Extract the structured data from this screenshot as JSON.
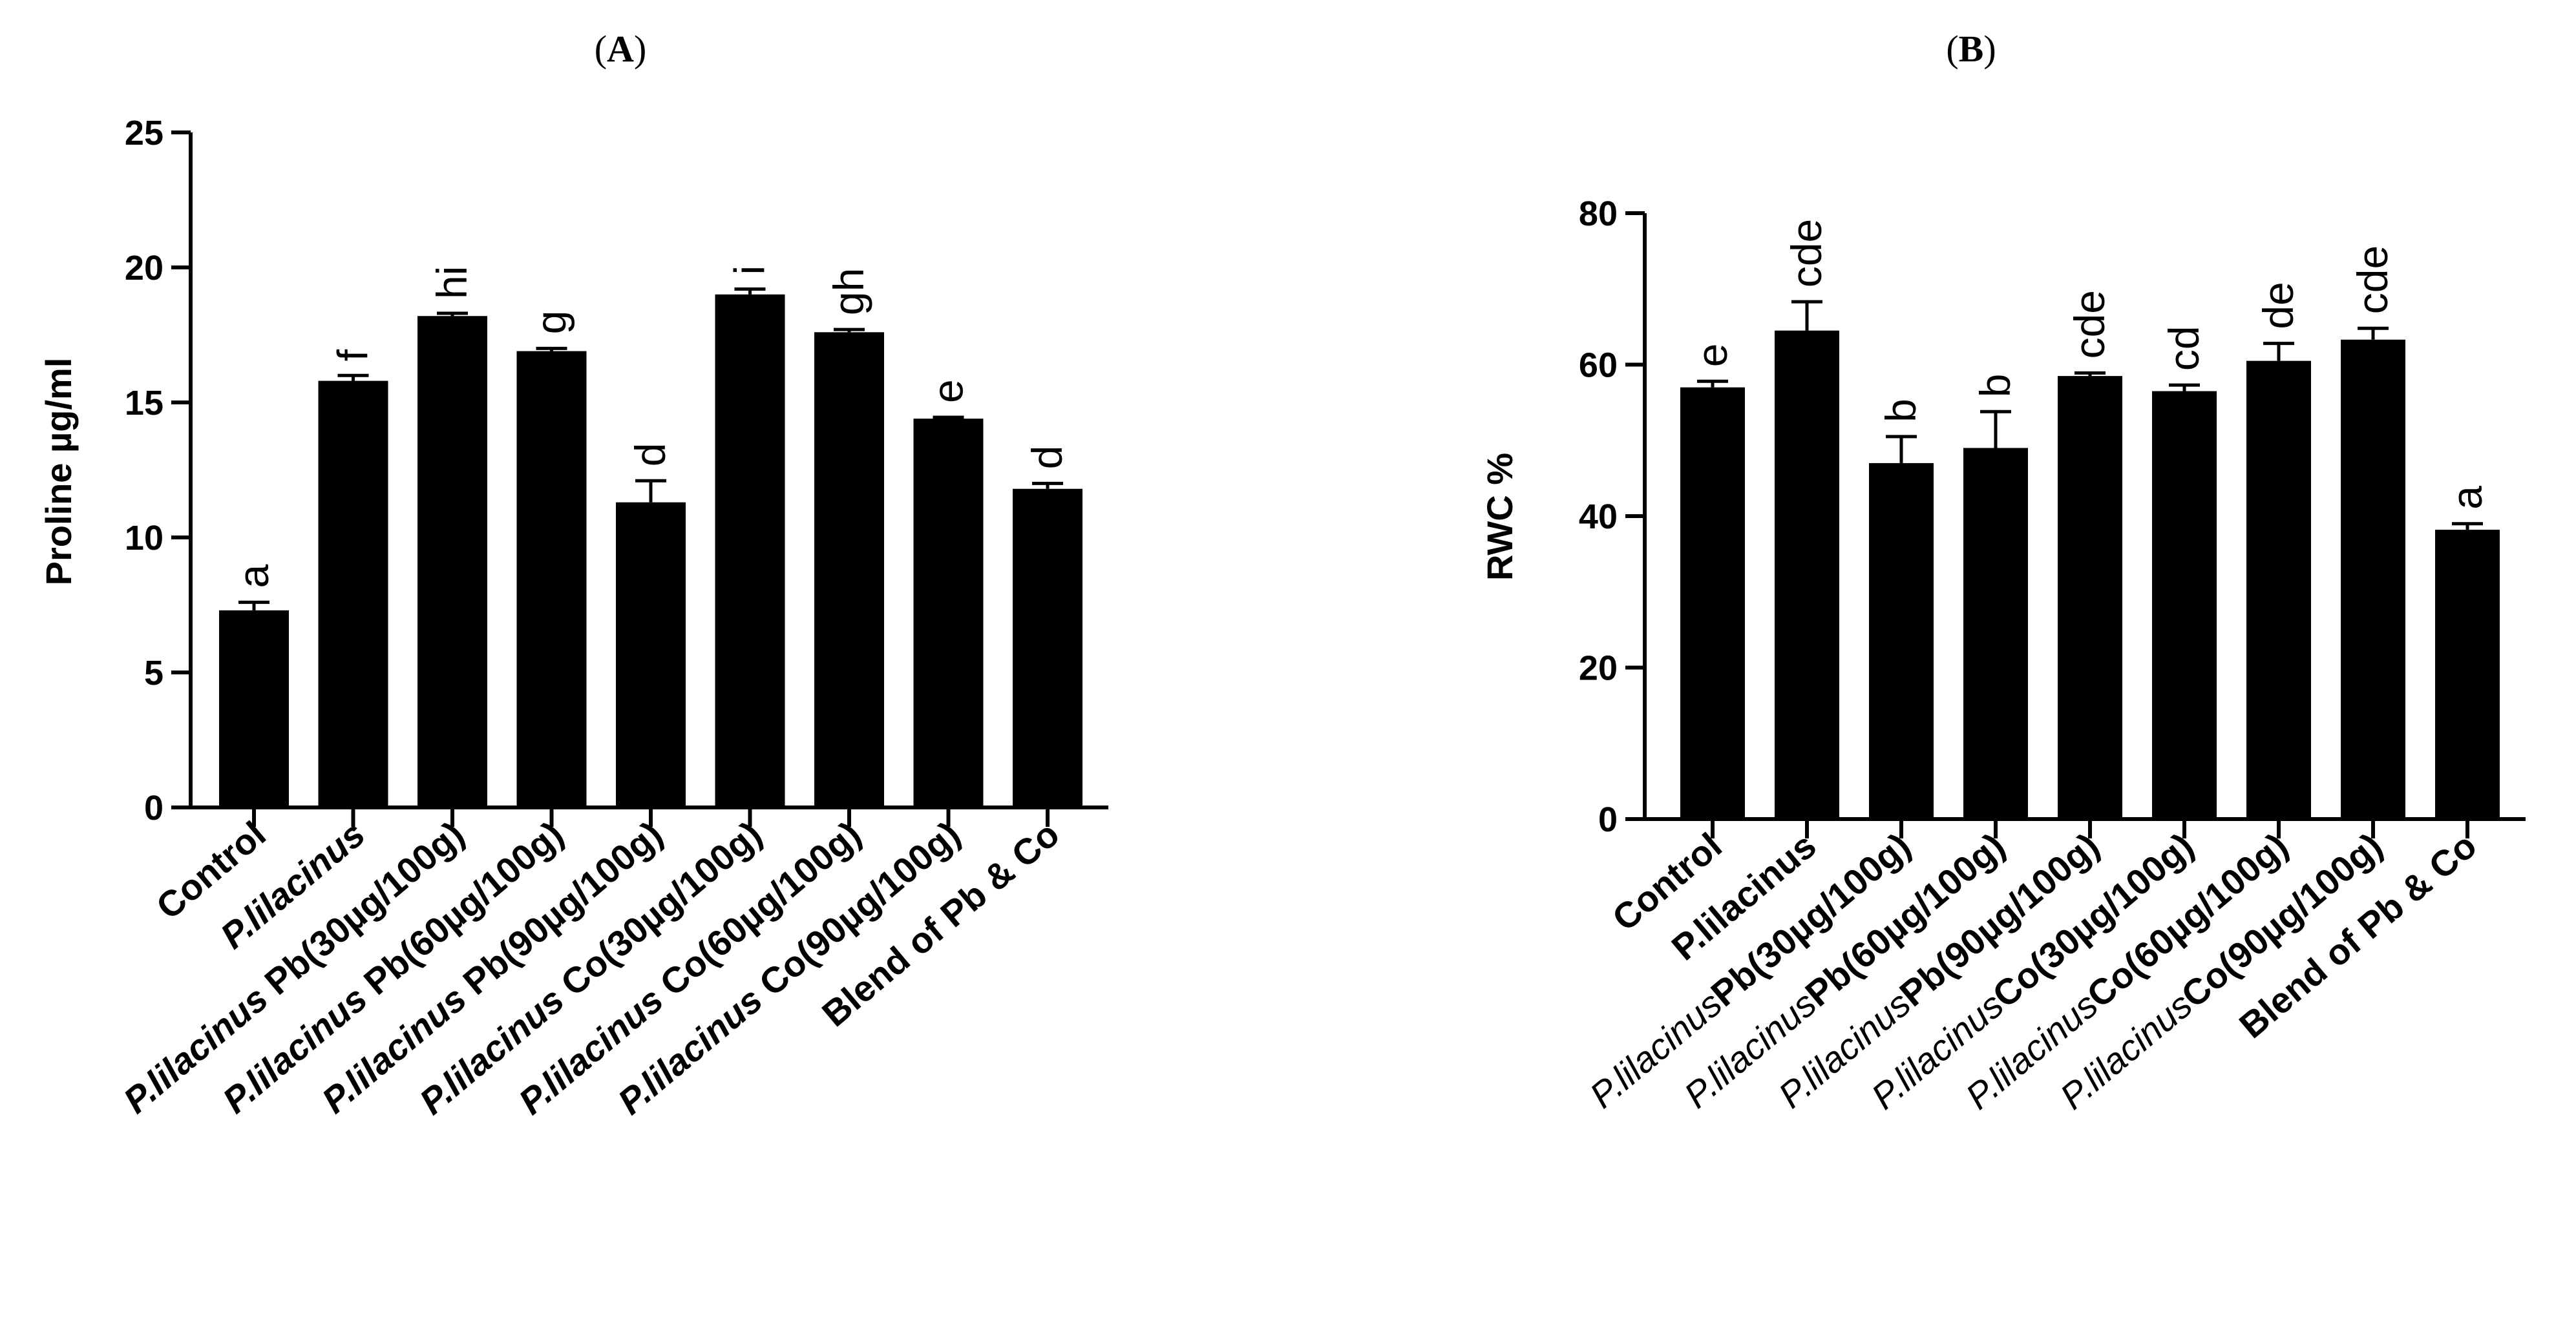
{
  "chart_data": [
    {
      "type": "bar",
      "panel_label": "A",
      "title": "",
      "xlabel": "",
      "ylabel": "Proline µg/ml",
      "ylim": [
        0,
        25
      ],
      "yticks": [
        0,
        5,
        10,
        15,
        20,
        25
      ],
      "categories": [
        {
          "prefix": "",
          "main": "Control",
          "prefix_italic": false,
          "main_italic": false
        },
        {
          "prefix": "",
          "main": "P.lilacinus",
          "prefix_italic": false,
          "main_italic": true
        },
        {
          "prefix": "P.lilacinus",
          "main": " Pb(30µg/100g)",
          "prefix_italic": true,
          "main_italic": false
        },
        {
          "prefix": "P.lilacinus",
          "main": " Pb(60µg/100g)",
          "prefix_italic": true,
          "main_italic": false
        },
        {
          "prefix": "P.lilacinus",
          "main": " Pb(90µg/100g)",
          "prefix_italic": true,
          "main_italic": false
        },
        {
          "prefix": "P.lilacinus",
          "main": " Co(30µg/100g)",
          "prefix_italic": true,
          "main_italic": false
        },
        {
          "prefix": "P.lilacinus",
          "main": " Co(60µg/100g)",
          "prefix_italic": true,
          "main_italic": false
        },
        {
          "prefix": "P.lilacinus",
          "main": " Co(90µg/100g)",
          "prefix_italic": true,
          "main_italic": false
        },
        {
          "prefix": "",
          "main": "Blend of Pb & Co",
          "prefix_italic": false,
          "main_italic": false
        }
      ],
      "values": [
        7.3,
        15.8,
        18.2,
        16.9,
        11.3,
        19.0,
        17.6,
        14.4,
        11.8
      ],
      "errors": [
        0.3,
        0.2,
        0.1,
        0.1,
        0.8,
        0.2,
        0.1,
        0.05,
        0.2
      ],
      "letters": [
        "a",
        "f",
        "hi",
        "g",
        "d",
        "i",
        "gh",
        "e",
        "d"
      ],
      "colors": {
        "bar": "#000000",
        "axis": "#000000"
      }
    },
    {
      "type": "bar",
      "panel_label": "B",
      "title": "",
      "xlabel": "",
      "ylabel": "RWC %",
      "ylim": [
        0,
        80
      ],
      "yticks": [
        0,
        20,
        40,
        60,
        80
      ],
      "categories": [
        {
          "prefix": "",
          "main": "Control",
          "prefix_italic": false,
          "main_italic": false
        },
        {
          "prefix": "",
          "main": "P.lilacinus",
          "prefix_italic": false,
          "main_italic": false
        },
        {
          "prefix": "P.lilacinus",
          "main": "Pb(30µg/100g)",
          "prefix_italic": true,
          "main_italic": false
        },
        {
          "prefix": "P.lilacinus",
          "main": "Pb(60µg/100g)",
          "prefix_italic": true,
          "main_italic": false
        },
        {
          "prefix": "P.lilacinus",
          "main": "Pb(90µg/100g)",
          "prefix_italic": true,
          "main_italic": false
        },
        {
          "prefix": "P.lilacinus",
          "main": "Co(30µg/100g)",
          "prefix_italic": true,
          "main_italic": false
        },
        {
          "prefix": "P.lilacinus",
          "main": "Co(60µg/100g)",
          "prefix_italic": true,
          "main_italic": false
        },
        {
          "prefix": "P.lilacinus",
          "main": "Co(90µg/100g)",
          "prefix_italic": true,
          "main_italic": false
        },
        {
          "prefix": "",
          "main": "Blend of Pb & Co",
          "prefix_italic": false,
          "main_italic": false
        }
      ],
      "values": [
        57,
        64.5,
        47,
        49,
        58.5,
        56.5,
        60.5,
        63.3,
        38.2
      ],
      "errors": [
        0.8,
        3.8,
        3.5,
        4.8,
        0.4,
        0.8,
        2.3,
        1.5,
        0.8
      ],
      "letters": [
        "e",
        "cde",
        "b",
        "b",
        "cde",
        "cd",
        "de",
        "cde",
        "a"
      ],
      "colors": {
        "bar": "#000000",
        "axis": "#000000"
      }
    }
  ]
}
